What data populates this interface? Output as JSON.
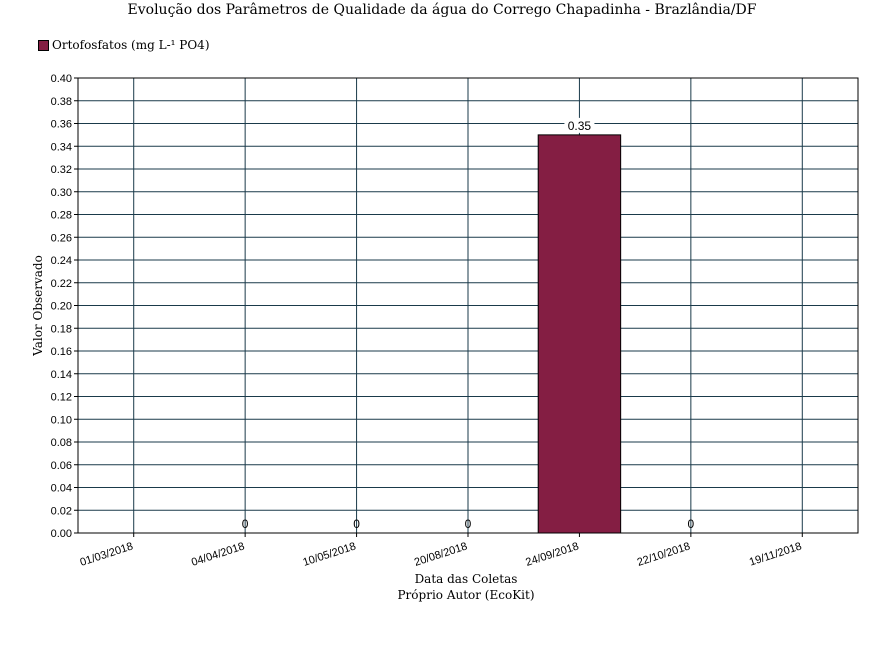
{
  "chart_data": {
    "type": "bar",
    "title": "Evolução dos Parâmetros de Qualidade da água do Corrego Chapadinha - Brazlândia/DF",
    "xlabel": "Data das Coletas",
    "source": "Próprio Autor (EcoKit)",
    "ylabel": "Valor Observado",
    "ylim": [
      0,
      0.4
    ],
    "ytick_step": 0.02,
    "legend_position": "top-left",
    "grid": true,
    "categories": [
      "01/03/2018",
      "04/04/2018",
      "10/05/2018",
      "20/08/2018",
      "24/09/2018",
      "22/10/2018",
      "19/11/2018"
    ],
    "series": [
      {
        "name": "Ortofosfatos (mg L-¹ PO4)",
        "color": "#841e43",
        "values": [
          null,
          0,
          0,
          0,
          0.35,
          0,
          null
        ],
        "labels": [
          "",
          "0",
          "0",
          "0",
          "0.35",
          "0",
          ""
        ]
      }
    ]
  }
}
